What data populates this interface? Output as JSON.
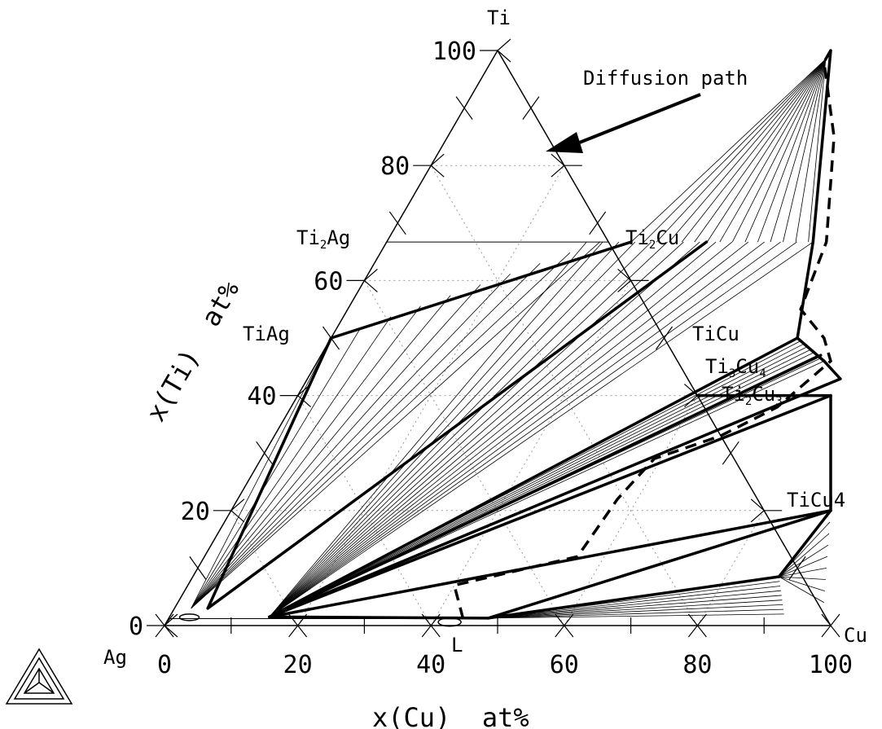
{
  "chart_data": {
    "type": "ternary",
    "xlabel": "x(Cu)  at%",
    "ylabel": "x(Ti)  at%",
    "corners": {
      "top": "Ti",
      "left": "Ag",
      "right": "Cu"
    },
    "axis_range": [
      0,
      100
    ],
    "bottom_ticks": [
      {
        "value": 0,
        "label": "0"
      },
      {
        "value": 20,
        "label": "20"
      },
      {
        "value": 40,
        "label": "40"
      },
      {
        "value": 60,
        "label": "60"
      },
      {
        "value": 80,
        "label": "80"
      },
      {
        "value": 100,
        "label": "100"
      }
    ],
    "left_ticks": [
      {
        "value": 0,
        "label": "0"
      },
      {
        "value": 20,
        "label": "20"
      },
      {
        "value": 40,
        "label": "40"
      },
      {
        "value": 60,
        "label": "60"
      },
      {
        "value": 80,
        "label": "80"
      },
      {
        "value": 100,
        "label": "100"
      }
    ],
    "phases": [
      {
        "label": "Ti2Ag",
        "base": "Ti",
        "sub1": "2",
        "rest": "Ag",
        "sub2": "",
        "cu": 0,
        "ti": 66.7,
        "side": "left"
      },
      {
        "label": "TiAg",
        "base": "TiAg",
        "sub1": "",
        "rest": "",
        "sub2": "",
        "cu": 0,
        "ti": 50,
        "side": "left"
      },
      {
        "label": "Ti2Cu",
        "base": "Ti",
        "sub1": "2",
        "rest": "Cu",
        "sub2": "",
        "cu": 33.3,
        "ti": 66.7,
        "side": "right"
      },
      {
        "label": "TiCu",
        "base": "TiCu",
        "sub1": "",
        "rest": "",
        "sub2": "",
        "cu": 50,
        "ti": 50,
        "side": "right"
      },
      {
        "label": "Ti3Cu4",
        "base": "Ti",
        "sub1": "3",
        "rest": "Cu",
        "sub2": "4",
        "cu": 57.1,
        "ti": 42.9,
        "side": "right"
      },
      {
        "label": "Ti2Cu3",
        "base": "Ti",
        "sub1": "2",
        "rest": "Cu",
        "sub2": "3",
        "cu": 60,
        "ti": 40,
        "side": "right"
      },
      {
        "label": "TiCu4",
        "base": "TiCu4",
        "sub1": "",
        "rest": "",
        "sub2": "",
        "cu": 80,
        "ti": 20,
        "side": "right"
      }
    ],
    "liquid_label": "L",
    "annotation": "Diffusion path",
    "phase_boundaries": [
      [
        [
          36.7,
          66.7
        ],
        [
          0,
          50
        ]
      ],
      [
        [
          0,
          50
        ],
        [
          5,
          3
        ]
      ],
      [
        [
          48,
          66.7
        ],
        [
          5,
          3
        ]
      ],
      [
        [
          64,
          66.7
        ],
        [
          70,
          50
        ]
      ],
      [
        [
          70,
          50
        ],
        [
          76,
          46
        ]
      ],
      [
        [
          76,
          46
        ],
        [
          80,
          42.9
        ]
      ],
      [
        [
          70,
          50
        ],
        [
          15,
          1.5
        ]
      ],
      [
        [
          75,
          47
        ],
        [
          15,
          1.5
        ]
      ],
      [
        [
          80,
          42.9
        ],
        [
          15,
          1.5
        ]
      ],
      [
        [
          80,
          40
        ],
        [
          15,
          1.5
        ]
      ],
      [
        [
          80,
          40
        ],
        [
          90,
          20
        ]
      ],
      [
        [
          90,
          20
        ],
        [
          15,
          1.5
        ]
      ],
      [
        [
          90,
          20
        ],
        [
          48,
          1.3
        ]
      ],
      [
        [
          90,
          20
        ],
        [
          88,
          8.5
        ]
      ],
      [
        [
          88,
          8.5
        ],
        [
          48,
          1.3
        ]
      ],
      [
        [
          15,
          1.5
        ],
        [
          48,
          1.3
        ]
      ],
      [
        [
          50,
          100
        ],
        [
          64,
          66.7
        ]
      ],
      [
        [
          80,
          40
        ],
        [
          60,
          40
        ]
      ]
    ],
    "diffusion_path": [
      [
        50,
        100
      ],
      [
        50,
        98
      ],
      [
        58,
        85
      ],
      [
        66,
        66.7
      ],
      [
        68,
        55
      ],
      [
        74,
        50
      ],
      [
        77,
        46
      ],
      [
        73,
        38
      ],
      [
        67,
        33
      ],
      [
        59,
        29
      ],
      [
        57,
        22
      ],
      [
        56,
        12
      ],
      [
        40,
        7
      ],
      [
        44,
        1.5
      ]
    ],
    "tie_line_fans": [
      {
        "from": [
          50,
          98.5
        ],
        "to_start": [
          36.7,
          66.7
        ],
        "to_end": [
          63.3,
          66.7
        ],
        "count": 14
      },
      {
        "from": [
          2.5,
          3
        ],
        "to_start": [
          0,
          50
        ],
        "to_end": [
          32,
          66.7
        ],
        "count": 9
      },
      {
        "from": [
          15,
          1.5
        ],
        "to_start": [
          30,
          66.7
        ],
        "to_end": [
          64,
          66.7
        ],
        "count": 14
      },
      {
        "from": [
          15,
          1.5
        ],
        "to_start": [
          70,
          50
        ],
        "to_end": [
          76,
          46
        ],
        "count": 8
      },
      {
        "from": [
          48,
          1.3
        ],
        "to_start": [
          88,
          8.5
        ],
        "to_end": [
          92,
          2
        ],
        "count": 8
      },
      {
        "from": [
          88,
          8.5
        ],
        "to_start": [
          90,
          20
        ],
        "to_end": [
          97,
          4
        ],
        "count": 8
      }
    ]
  }
}
